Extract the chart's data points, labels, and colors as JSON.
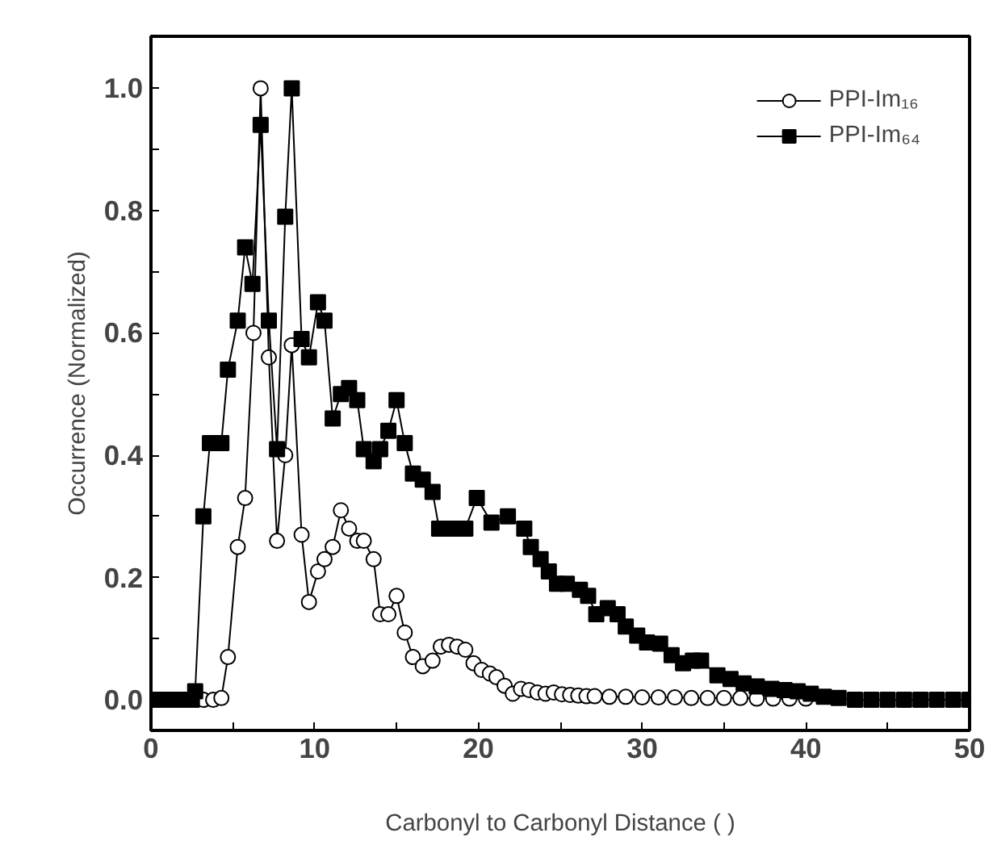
{
  "chart_data": {
    "type": "line",
    "xlabel": "Carbonyl to Carbonyl Distance ( )",
    "ylabel": "Occurrence (Normalized)",
    "xlim": [
      0,
      50
    ],
    "ylim": [
      -0.05,
      1.085
    ],
    "xticks": [
      0,
      {
        "value": 5,
        "label": null
      },
      10,
      {
        "value": 15,
        "label": null
      },
      20,
      {
        "value": 25,
        "label": null
      },
      30,
      {
        "value": 35,
        "label": null
      },
      40,
      {
        "value": 45,
        "label": null
      },
      50
    ],
    "yticks": [
      {
        "value": 0,
        "label": "0.0"
      },
      {
        "value": 0.1,
        "label": null
      },
      0.2,
      {
        "value": 0.3,
        "label": null
      },
      0.4,
      {
        "value": 0.5,
        "label": null
      },
      0.6,
      {
        "value": 0.7,
        "label": null
      },
      0.8,
      {
        "value": 0.9,
        "label": null
      },
      {
        "value": 1,
        "label": "1.0"
      }
    ],
    "grid": false,
    "legend": "top right",
    "line_style": "solid",
    "series": [
      {
        "name": "PPI-Im₁₆",
        "color": "#000000",
        "marker": "circle",
        "x": [
          0,
          0.5,
          1,
          1.5,
          2,
          2.5,
          3.2,
          3.8,
          4.3,
          4.7,
          5.3,
          5.75,
          6.26,
          6.7,
          7.2,
          7.7,
          8.2,
          8.6,
          9.2,
          9.65,
          10.2,
          10.6,
          11.1,
          11.6,
          12.1,
          12.6,
          13.0,
          13.6,
          14.0,
          14.5,
          15.0,
          15.5,
          16.0,
          16.6,
          17.2,
          17.7,
          18.2,
          18.7,
          19.2,
          19.7,
          20.2,
          20.7,
          21.1,
          21.6,
          22.1,
          22.6,
          23.1,
          23.6,
          24.1,
          24.6,
          25.1,
          25.6,
          26.1,
          26.6,
          27.1,
          28,
          29,
          30,
          31,
          32,
          33,
          34,
          35,
          36,
          37,
          38,
          39,
          40
        ],
        "values": [
          0,
          0,
          0,
          0,
          0,
          0,
          0,
          0,
          0.003,
          0.07,
          0.25,
          0.33,
          0.6,
          1.0,
          0.56,
          0.26,
          0.4,
          0.58,
          0.27,
          0.16,
          0.21,
          0.23,
          0.25,
          0.31,
          0.28,
          0.26,
          0.26,
          0.23,
          0.14,
          0.14,
          0.17,
          0.11,
          0.07,
          0.055,
          0.064,
          0.087,
          0.09,
          0.087,
          0.082,
          0.06,
          0.049,
          0.043,
          0.037,
          0.023,
          0.01,
          0.018,
          0.016,
          0.012,
          0.01,
          0.012,
          0.009,
          0.008,
          0.007,
          0.006,
          0.006,
          0.005,
          0.005,
          0.004,
          0.004,
          0.004,
          0.003,
          0.003,
          0.003,
          0.003,
          0.002,
          0.002,
          0.002,
          0.002
        ]
      },
      {
        "name": "PPI-Im₆₄",
        "color": "#000000",
        "marker": "square",
        "x": [
          0,
          0.5,
          1,
          1.5,
          2,
          2.5,
          2.7,
          3.2,
          3.6,
          4.3,
          4.7,
          5.3,
          5.75,
          6.2,
          6.7,
          7.2,
          7.7,
          8.2,
          8.6,
          9.2,
          9.65,
          10.2,
          10.6,
          11.1,
          11.6,
          12.1,
          12.6,
          13.0,
          13.6,
          14.0,
          14.5,
          15.0,
          15.5,
          16.0,
          16.6,
          17.2,
          17.6,
          18.4,
          19.2,
          19.9,
          20.8,
          21.8,
          22.8,
          23.2,
          23.8,
          24.3,
          24.8,
          25.4,
          26.2,
          26.7,
          27.2,
          27.9,
          28.5,
          29.0,
          29.7,
          30.3,
          31.1,
          31.8,
          32.5,
          33.1,
          33.6,
          34.6,
          35.4,
          36.2,
          37.0,
          37.9,
          38.7,
          39.5,
          40.3,
          41.1,
          42,
          43,
          44,
          45,
          46,
          47,
          48,
          49,
          50
        ],
        "values": [
          0,
          0,
          0,
          0,
          0,
          0,
          0.014,
          0.3,
          0.42,
          0.42,
          0.54,
          0.62,
          0.74,
          0.68,
          0.94,
          0.62,
          0.41,
          0.79,
          1.0,
          0.59,
          0.56,
          0.65,
          0.62,
          0.46,
          0.5,
          0.51,
          0.49,
          0.41,
          0.39,
          0.41,
          0.44,
          0.49,
          0.42,
          0.37,
          0.36,
          0.34,
          0.28,
          0.28,
          0.28,
          0.33,
          0.29,
          0.3,
          0.28,
          0.25,
          0.23,
          0.21,
          0.19,
          0.19,
          0.18,
          0.17,
          0.14,
          0.15,
          0.14,
          0.12,
          0.105,
          0.094,
          0.092,
          0.073,
          0.06,
          0.064,
          0.064,
          0.04,
          0.034,
          0.027,
          0.022,
          0.018,
          0.016,
          0.014,
          0.01,
          0.005,
          0.003,
          0,
          0,
          0,
          0,
          0,
          0,
          0,
          0
        ]
      }
    ]
  }
}
